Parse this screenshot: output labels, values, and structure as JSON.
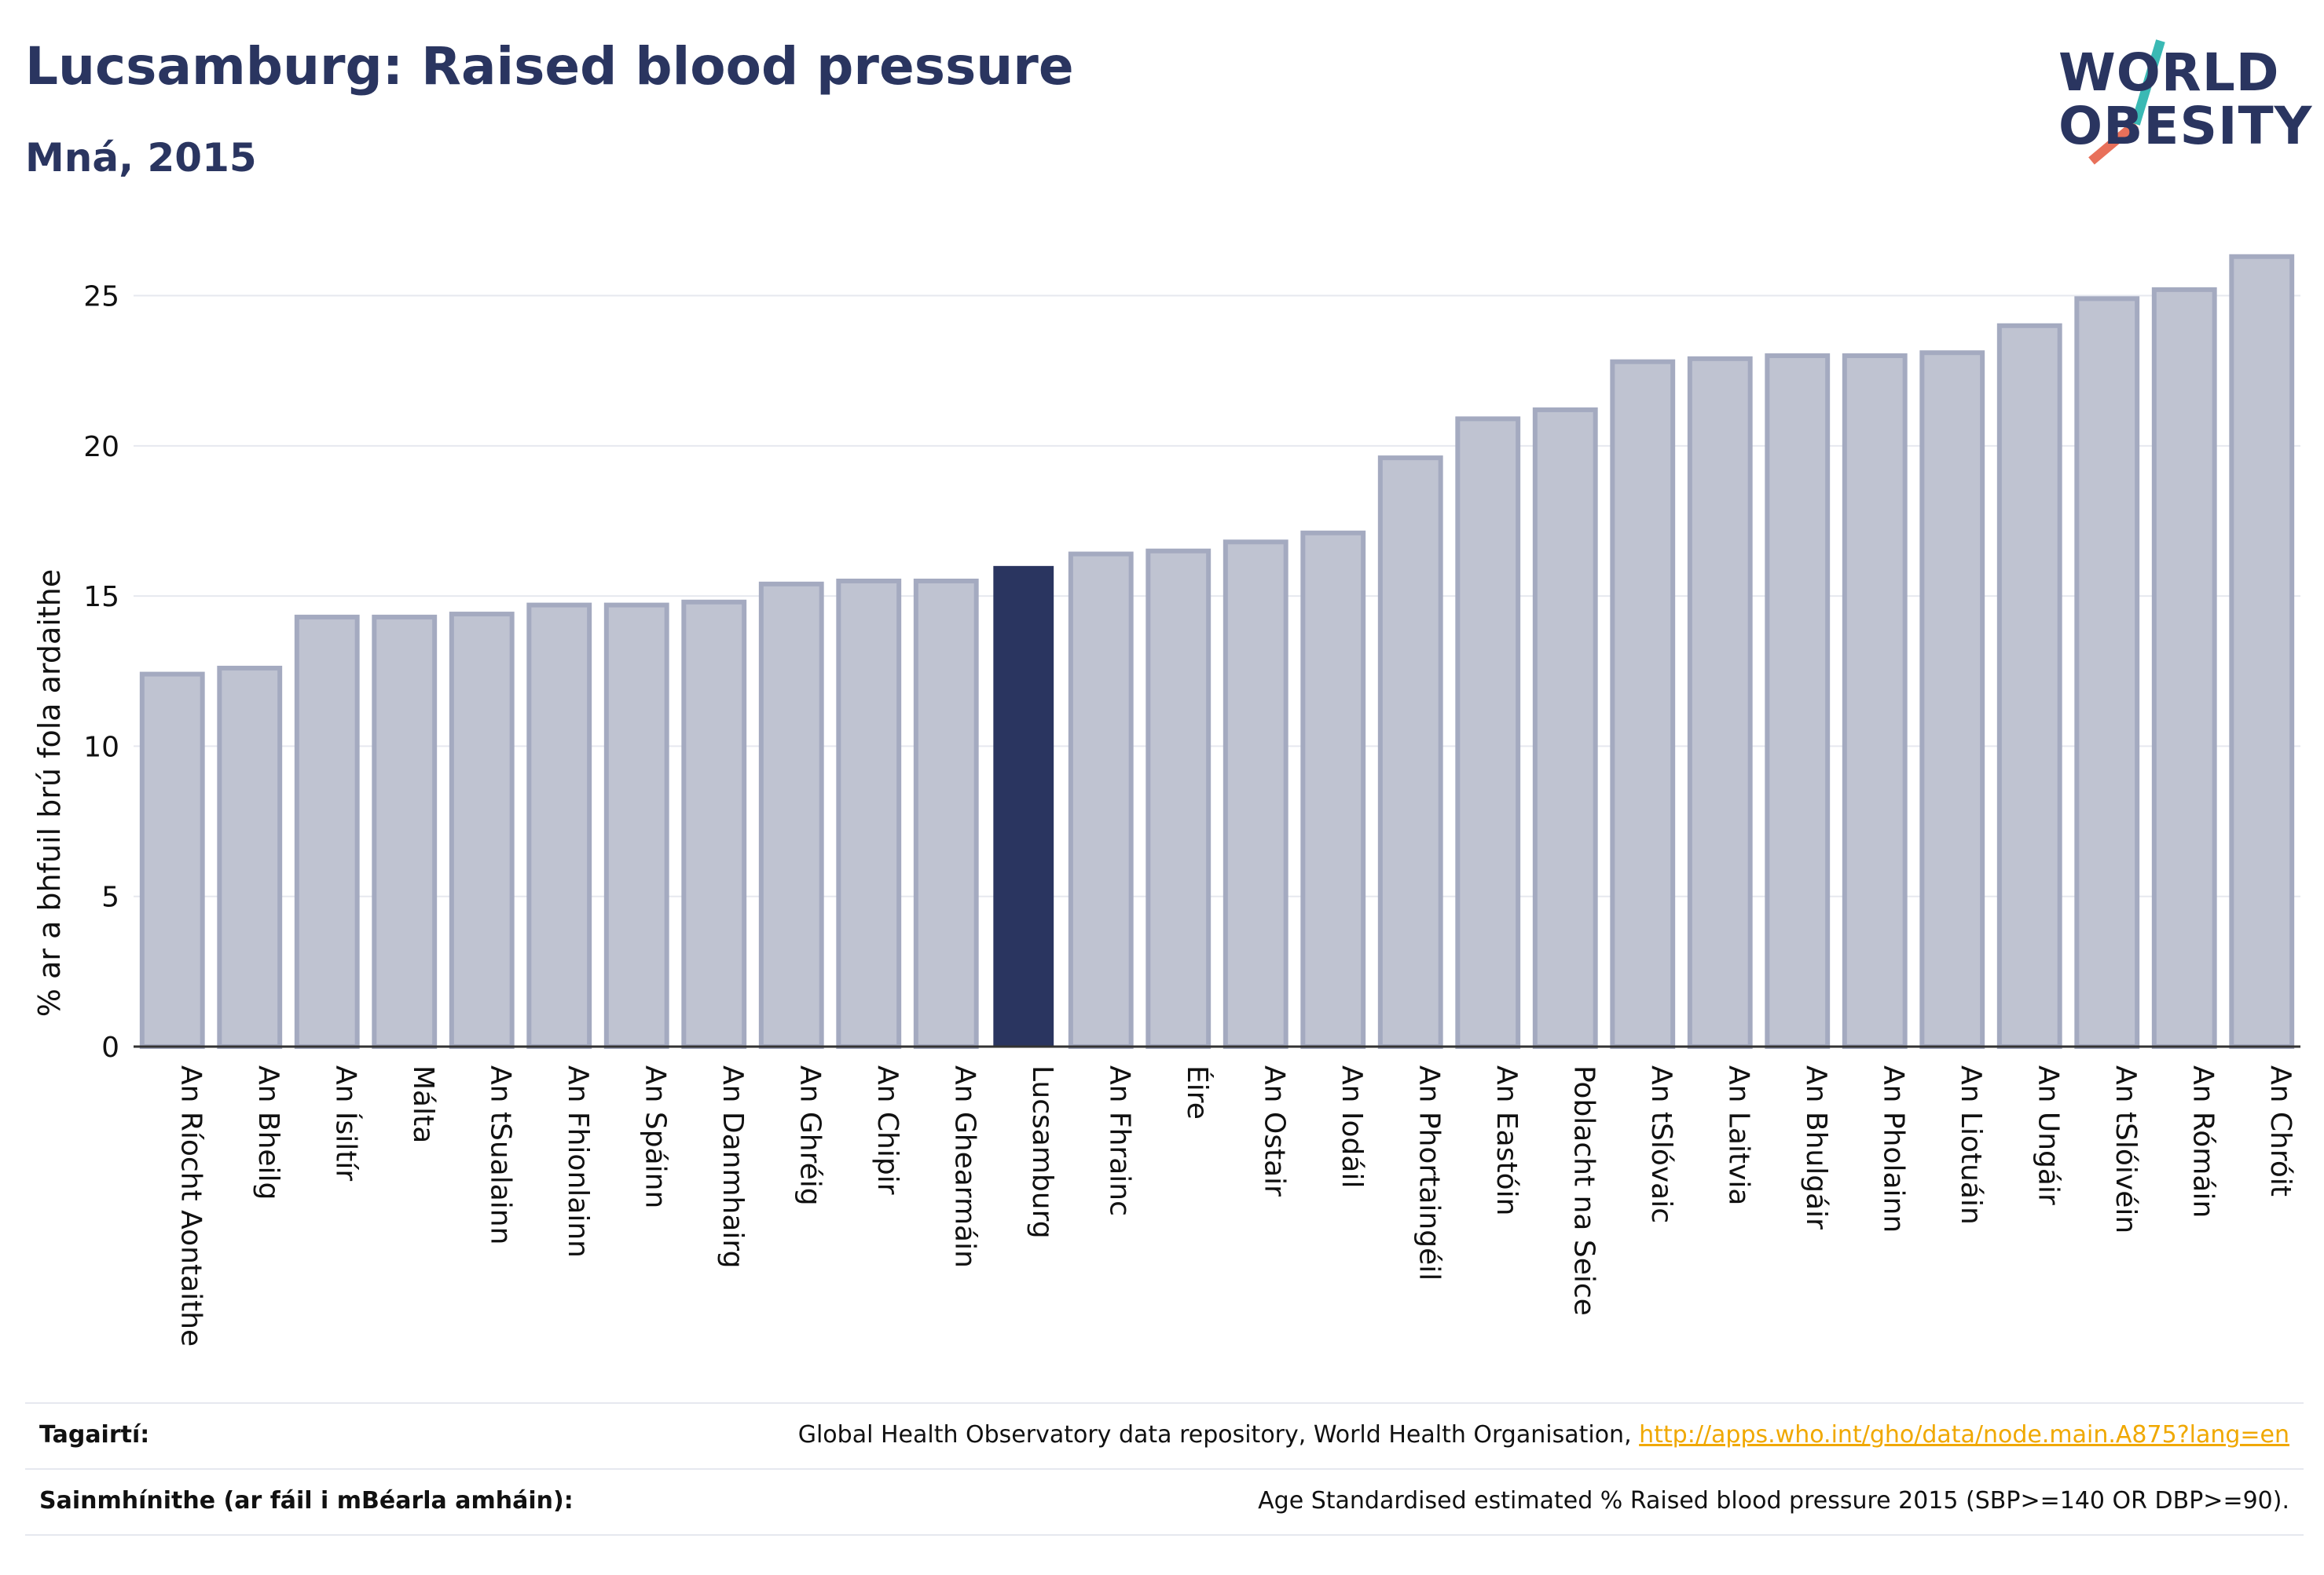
{
  "header": {
    "title": "Lucsamburg: Raised blood pressure",
    "subtitle": "Mná, 2015"
  },
  "logo": {
    "line1": "WORLD",
    "line2": "OBESITY",
    "colors": {
      "text": "#2a3560",
      "slash_top": "#3ab9b4",
      "slash_bottom": "#e8705a"
    }
  },
  "colors": {
    "highlight": "#2a3560",
    "bar_fill": "#bfc3d1",
    "bar_stroke": "#a4aac0",
    "grid": "#e6e8ef",
    "axis": "#333333"
  },
  "chart_data": {
    "type": "bar",
    "title": "Lucsamburg: Raised blood pressure",
    "subtitle": "Mná, 2015",
    "ylabel": "% ar a bhfuil brú fola ardaithe",
    "xlabel": "",
    "ylim": [
      0,
      27
    ],
    "yticks": [
      0,
      5,
      10,
      15,
      20,
      25
    ],
    "grid": true,
    "highlight_category": "Lucsamburg",
    "categories": [
      "An Ríocht Aontaithe",
      "An Bheilg",
      "An Ísiltír",
      "Málta",
      "An tSualainn",
      "An Fhionlainn",
      "An Spáinn",
      "An Danmhairg",
      "An Ghréig",
      "An Chipir",
      "An Ghearmáin",
      "Lucsamburg",
      "An Fhrainc",
      "Éire",
      "An Ostair",
      "An Iodáil",
      "An Phortaingéil",
      "An Eastóin",
      "Poblacht na Seice",
      "An tSlóvaic",
      "An Laitvia",
      "An Bhulgáir",
      "An Pholainn",
      "An Liotuáin",
      "An Ungáir",
      "An tSlóivéin",
      "An Rómáin",
      "An Chróit"
    ],
    "values": [
      12.4,
      12.6,
      14.3,
      14.3,
      14.4,
      14.7,
      14.7,
      14.8,
      15.4,
      15.5,
      15.5,
      16.0,
      16.4,
      16.5,
      16.8,
      17.1,
      19.6,
      20.9,
      21.2,
      22.8,
      22.9,
      23.0,
      23.0,
      23.1,
      24.0,
      24.9,
      25.2,
      26.3
    ]
  },
  "footer": {
    "references_label": "Tagairtí:",
    "references_text": "Global Health Observatory data repository, World Health Organisation, ",
    "references_link": "http://apps.who.int/gho/data/node.main.A875?lang=en",
    "definitions_label": "Sainmhínithe (ar fáil i mBéarla amháin):",
    "definitions_text": "Age Standardised estimated % Raised blood pressure 2015 (SBP>=140 OR DBP>=90)."
  }
}
